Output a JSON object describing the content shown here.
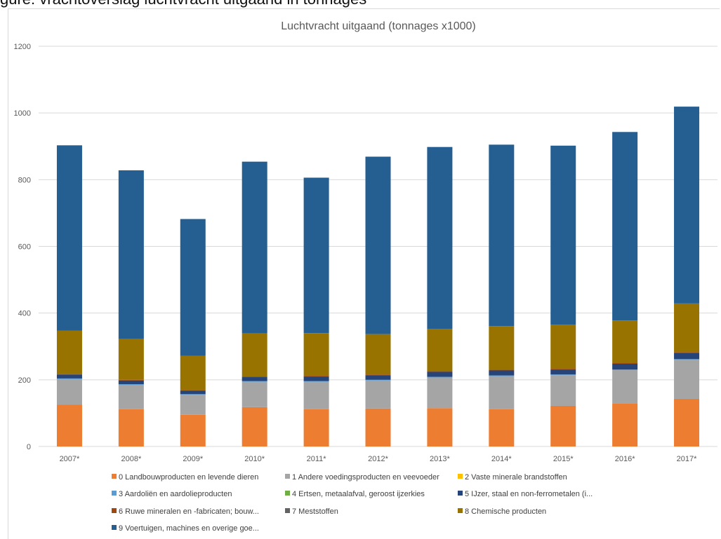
{
  "page_header": "gure: vrachtoverslag luchtvracht uitgaand in tonnages",
  "chart_data": {
    "type": "bar",
    "stacked": true,
    "title": "Luchtvracht uitgaand (tonnages x1000)",
    "xlabel": "",
    "ylabel": "",
    "ylim": [
      0,
      1200
    ],
    "yticks": [
      0,
      200,
      400,
      600,
      800,
      1000,
      1200
    ],
    "grid": true,
    "legend_position": "bottom",
    "categories": [
      "2007*",
      "2008*",
      "2009*",
      "2010*",
      "2011*",
      "2012*",
      "2013*",
      "2014*",
      "2015*",
      "2016*",
      "2017*"
    ],
    "series": [
      {
        "name": "0 Landbouwproducten en levende dieren",
        "color": "#ed7d31",
        "values": [
          125,
          112,
          95,
          118,
          112,
          114,
          115,
          112,
          122,
          129,
          143
        ]
      },
      {
        "name": "1 Andere voedingsproducten en veevoeder",
        "color": "#a5a5a5",
        "values": [
          77,
          73,
          60,
          76,
          82,
          84,
          92,
          99,
          92,
          100,
          117
        ]
      },
      {
        "name": "2 Vaste minerale brandstoffen",
        "color": "#ffc000",
        "values": [
          0,
          0,
          0,
          0,
          0,
          0,
          0,
          0,
          0,
          0,
          0
        ]
      },
      {
        "name": "3 Aardoliën en aardolieproducten",
        "color": "#5b9bd5",
        "values": [
          2,
          2,
          2,
          2,
          2,
          2,
          2,
          2,
          2,
          2,
          2
        ]
      },
      {
        "name": "4 Ertsen, metaalafval, geroost ijzerkies",
        "color": "#70ad47",
        "values": [
          0,
          0,
          0,
          0,
          0,
          0,
          0,
          0,
          0,
          0,
          0
        ]
      },
      {
        "name": "5 IJzer, staal en non-ferrometalen (i...",
        "color": "#264478",
        "values": [
          12,
          11,
          10,
          12,
          14,
          14,
          15,
          15,
          15,
          17,
          19
        ]
      },
      {
        "name": "6 Ruwe mineralen en -fabricaten; bouw...",
        "color": "#9e480e",
        "values": [
          2,
          2,
          2,
          2,
          2,
          2,
          2,
          2,
          2,
          2,
          2
        ]
      },
      {
        "name": "7 Meststoffen",
        "color": "#636363",
        "values": [
          0,
          0,
          0,
          0,
          0,
          0,
          0,
          0,
          0,
          0,
          0
        ]
      },
      {
        "name": "8 Chemische producten",
        "color": "#997300",
        "values": [
          129,
          122,
          103,
          129,
          128,
          121,
          127,
          131,
          132,
          128,
          146
        ]
      },
      {
        "name": "9 Voertuigen, machines en overige goe...",
        "color": "#255e91",
        "values": [
          556,
          506,
          410,
          515,
          466,
          532,
          545,
          544,
          537,
          565,
          590
        ]
      }
    ]
  }
}
